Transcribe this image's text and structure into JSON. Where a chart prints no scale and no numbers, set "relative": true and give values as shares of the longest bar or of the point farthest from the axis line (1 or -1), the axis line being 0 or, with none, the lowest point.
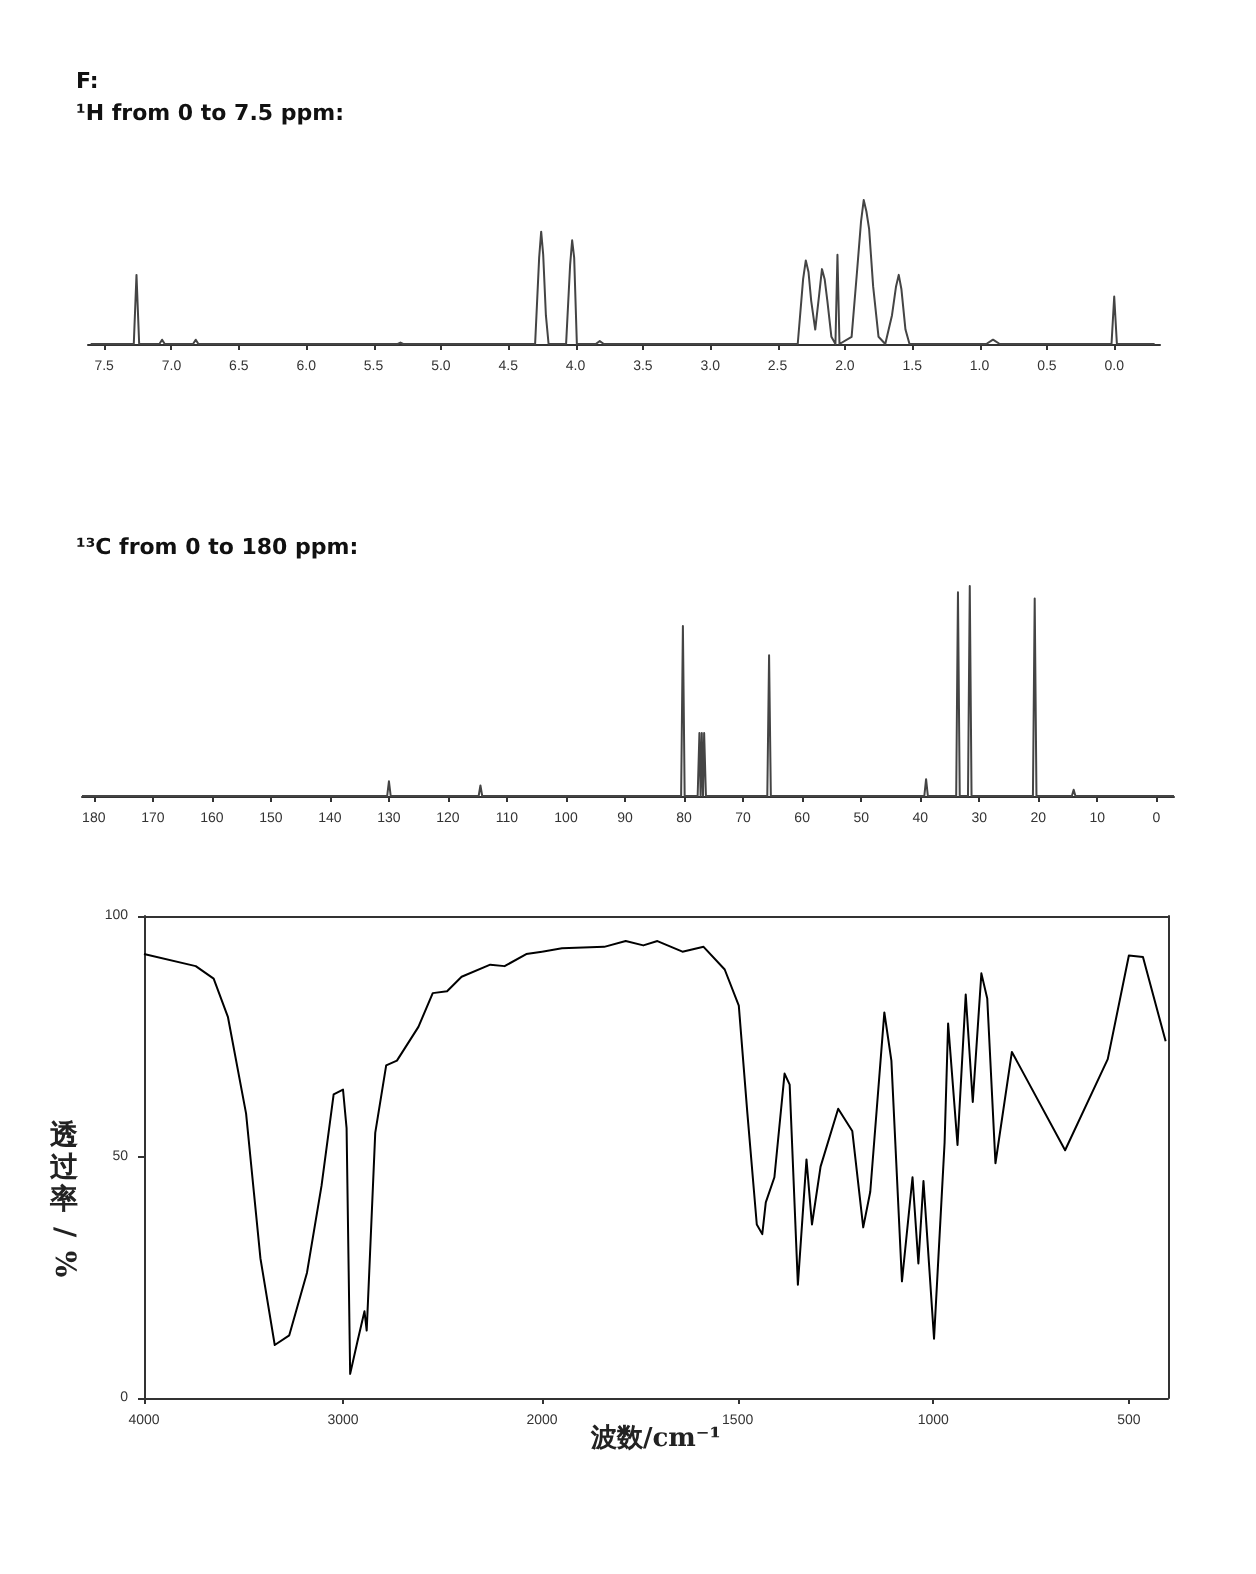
{
  "chart_data": [
    {
      "type": "line",
      "title": "F:",
      "subtitle": "¹H from 0 to 7.5 ppm:",
      "relative": true,
      "xlim": [
        7.62,
        -0.34
      ],
      "xticks": [
        7.5,
        {
          "value": 7,
          "label": "7.0"
        },
        6.5,
        {
          "value": 6,
          "label": "6.0"
        },
        5.5,
        {
          "value": 5,
          "label": "5.0"
        },
        4.5,
        {
          "value": 4,
          "label": "4.0"
        },
        3.5,
        {
          "value": 3,
          "label": "3.0"
        },
        2.5,
        {
          "value": 2,
          "label": "2.0"
        },
        1.5,
        {
          "value": 1,
          "label": "1.0"
        },
        0.5,
        {
          "value": 0,
          "label": "0.0"
        }
      ],
      "series": [
        {
          "color": "#444444",
          "x": [
            7.6,
            7.28,
            7.26,
            7.24,
            7.09,
            7.07,
            7.05,
            6.84,
            6.82,
            6.8,
            5.32,
            5.3,
            5.28,
            4.3,
            4.27,
            4.255,
            4.24,
            4.22,
            4.2,
            4.07,
            4.04,
            4.025,
            4.01,
            3.99,
            3.85,
            3.82,
            3.79,
            2.35,
            2.31,
            2.29,
            2.27,
            2.25,
            2.22,
            2.19,
            2.17,
            2.15,
            2.13,
            2.1,
            2.07,
            2.055,
            2.04,
            1.95,
            1.91,
            1.88,
            1.86,
            1.84,
            1.82,
            1.79,
            1.75,
            1.7,
            1.65,
            1.62,
            1.6,
            1.58,
            1.55,
            1.52,
            0.95,
            0.9,
            0.85,
            0.02,
            0,
            -0.02,
            -0.3
          ],
          "values": [
            0,
            0,
            0.48,
            0,
            0,
            0.03,
            0,
            0,
            0.03,
            0,
            0,
            0.01,
            0,
            0,
            0.6,
            0.78,
            0.62,
            0.2,
            0,
            0,
            0.55,
            0.72,
            0.6,
            0,
            0,
            0.02,
            0,
            0,
            0.45,
            0.58,
            0.5,
            0.3,
            0.1,
            0.35,
            0.52,
            0.45,
            0.3,
            0.05,
            0,
            0.62,
            0,
            0.05,
            0.5,
            0.85,
            1,
            0.92,
            0.8,
            0.4,
            0.05,
            0,
            0.2,
            0.4,
            0.48,
            0.38,
            0.1,
            0,
            0,
            0.03,
            0,
            0,
            0.33,
            0,
            0
          ]
        }
      ]
    },
    {
      "type": "line",
      "title": "¹³C from 0 to 180 ppm:",
      "relative": true,
      "xlim": [
        182,
        -3
      ],
      "xticks": [
        180,
        170,
        160,
        150,
        140,
        130,
        120,
        110,
        100,
        90,
        80,
        70,
        60,
        50,
        40,
        30,
        20,
        10,
        0
      ],
      "series": [
        {
          "color": "#444444",
          "x": [
            182,
            130.3,
            130,
            129.7,
            114.8,
            114.5,
            114.2,
            80.5,
            80.2,
            79.9,
            77.7,
            77.4,
            77.2,
            77.0,
            76.8,
            76.6,
            76.3,
            65.9,
            65.6,
            65.3,
            39.3,
            39,
            38.7,
            33.9,
            33.6,
            33.3,
            31.9,
            31.6,
            31.3,
            20.9,
            20.6,
            20.3,
            14.3,
            14,
            13.7,
            -3
          ],
          "values": [
            0,
            0,
            0.07,
            0,
            0,
            0.05,
            0,
            0,
            0.81,
            0,
            0,
            0.3,
            0,
            0.3,
            0,
            0.3,
            0,
            0,
            0.67,
            0,
            0,
            0.08,
            0,
            0,
            0.97,
            0,
            0,
            1,
            0,
            0,
            0.94,
            0,
            0,
            0.03,
            0,
            0
          ]
        }
      ]
    },
    {
      "type": "line",
      "ylabel": "透过率/%",
      "xlim": [
        4000,
        2000
      ],
      "xticks": [
        4000,
        3000,
        2000
      ],
      "ylim": [
        0,
        100
      ],
      "yticks": [
        0,
        50,
        100
      ],
      "series": [
        {
          "color": "#000000",
          "x": [
            4000,
            3740,
            3650,
            3578,
            3487,
            3415,
            3343,
            3270,
            3181,
            3108,
            3047,
            3000,
            2982,
            2964,
            2928,
            2892,
            2881,
            2874,
            2838,
            2783,
            2729,
            2621,
            2549,
            2477,
            2404,
            2260,
            2188,
            2079,
            2000
          ],
          "values": [
            92.1,
            89.6,
            87,
            79,
            59,
            29,
            11,
            13,
            26,
            44,
            63,
            64,
            56,
            5,
            11.6,
            18,
            14,
            20.5,
            55,
            69,
            70,
            77,
            84,
            84.4,
            87.4,
            89.9,
            89.6,
            92.1,
            92.6
          ]
        }
      ]
    },
    {
      "type": "line",
      "xlabel": "波数/cm⁻¹",
      "xlim": [
        2000,
        400
      ],
      "xticks": [
        1500,
        1000,
        500
      ],
      "ylim": [
        0,
        100
      ],
      "tick_labels": "x",
      "series": [
        {
          "color": "#000000",
          "x": [
            2000,
            1949,
            1841,
            1786,
            1741,
            1705,
            1641,
            1587,
            1533,
            1497,
            1475,
            1451,
            1437,
            1428,
            1406,
            1380,
            1367,
            1346,
            1324,
            1310,
            1288,
            1243,
            1207,
            1179,
            1161,
            1125,
            1107,
            1080,
            1053,
            1038,
            1025,
            998,
            971,
            962,
            938,
            917,
            899,
            877,
            862,
            841,
            799,
            663,
            554,
            500,
            464,
            406
          ],
          "values": [
            92.6,
            93.3,
            93.6,
            94.8,
            93.9,
            94.8,
            92.6,
            93.6,
            88.9,
            81.4,
            59,
            36,
            34,
            40.6,
            45.8,
            67.3,
            65,
            23.5,
            49.5,
            36,
            48,
            60,
            55.4,
            35.4,
            42.8,
            80,
            70,
            24.2,
            45.8,
            27.9,
            45,
            12.3,
            53,
            77.7,
            52.5,
            83.7,
            61.4,
            88.1,
            82.9,
            48.7,
            71.8,
            51.4,
            70.3,
            91.8,
            91.5,
            74
          ]
        }
      ]
    }
  ]
}
